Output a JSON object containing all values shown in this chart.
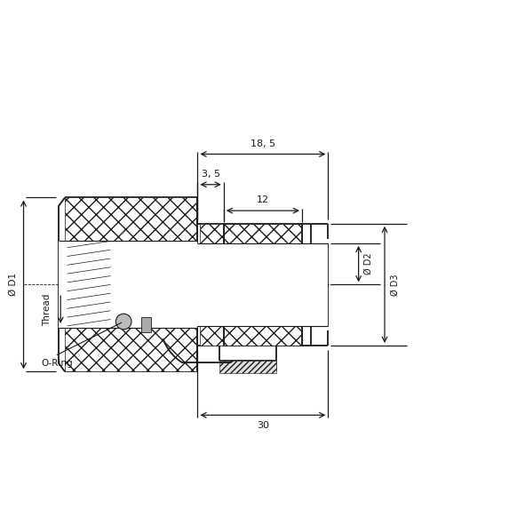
{
  "bg_color": "#ffffff",
  "line_color": "#1a1a1a",
  "lw": 1.3,
  "lw_thin": 0.8,
  "dim_lw": 0.9,
  "annotations": {
    "dim_18_5": "18, 5",
    "dim_3_5": "3, 5",
    "dim_12": "12",
    "dim_30": "30",
    "D1": "Ø D1",
    "thread": "Thread",
    "D2": "Ø D2",
    "D3": "Ø D3",
    "o_ring": "O-Ring"
  }
}
